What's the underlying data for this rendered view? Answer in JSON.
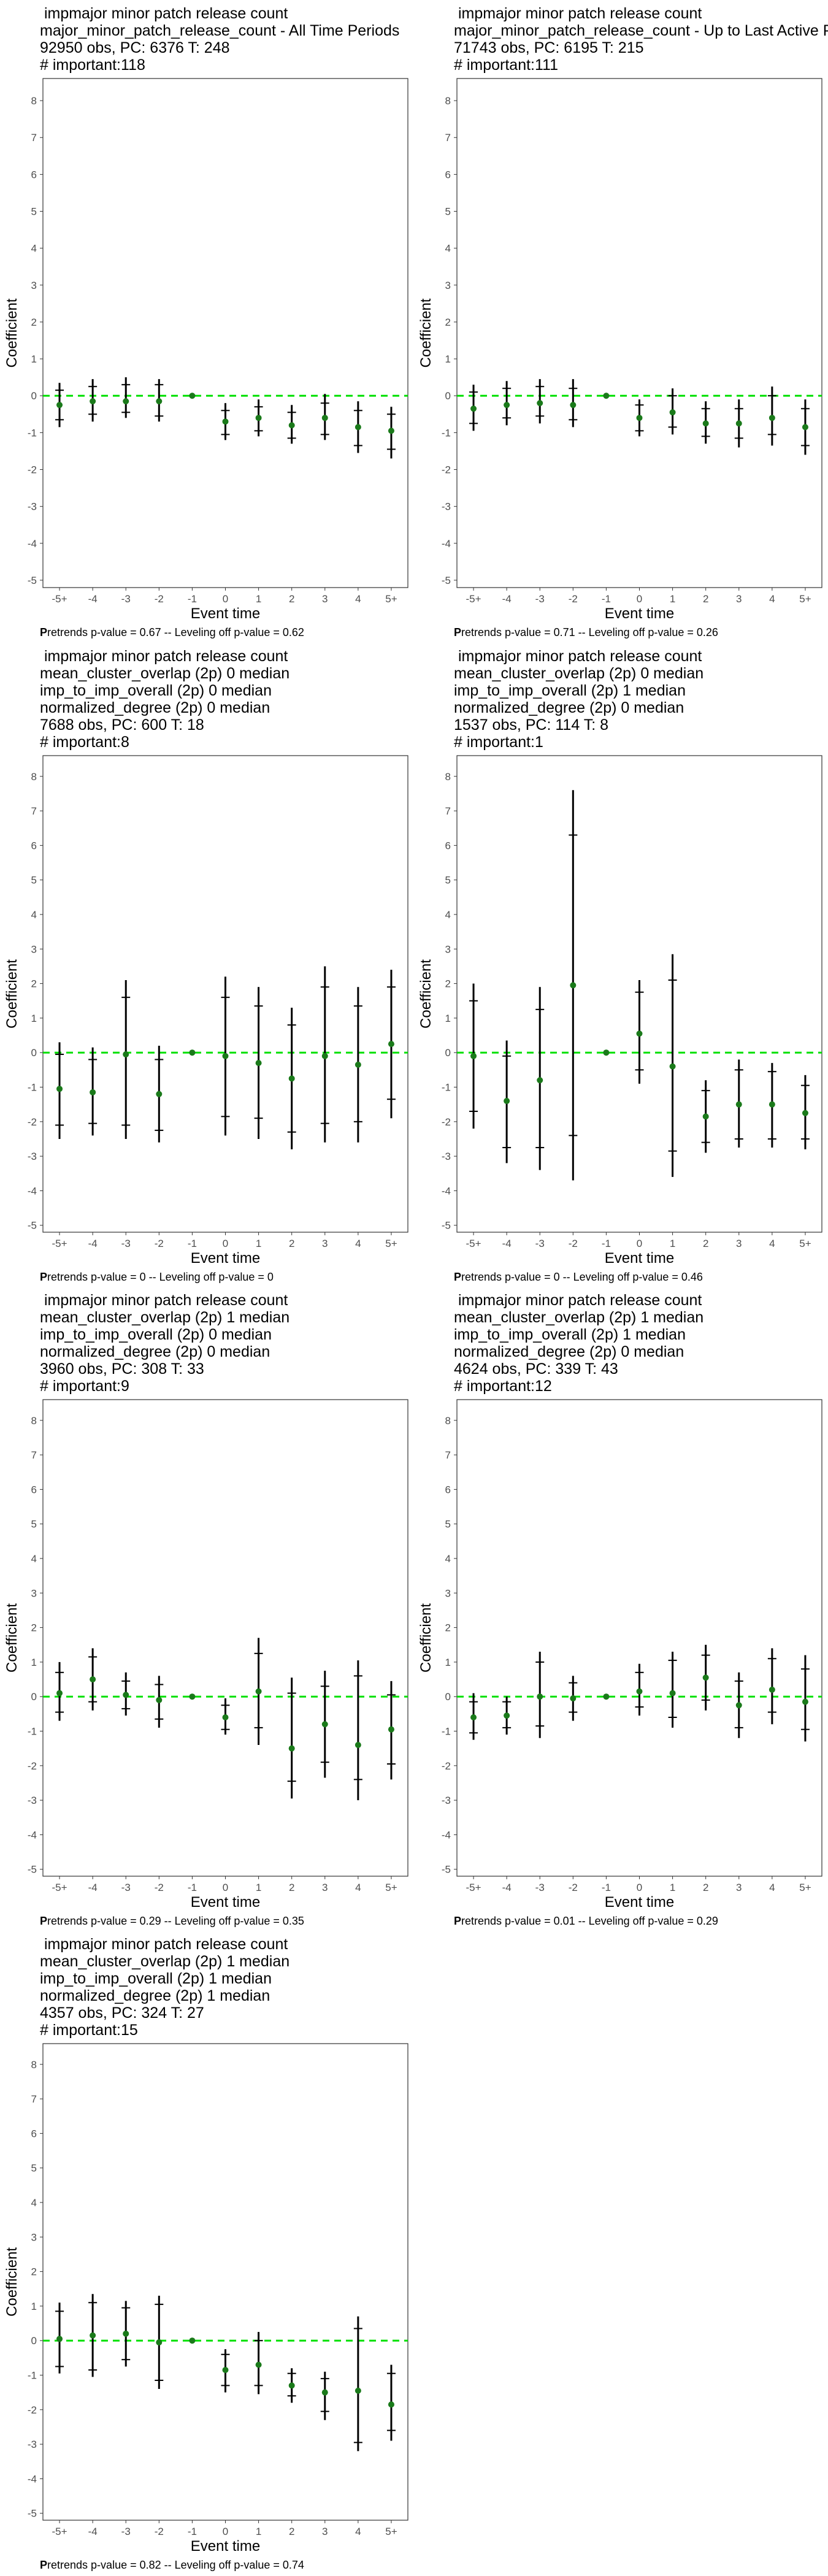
{
  "chart_data": [
    {
      "type": "scatter",
      "title_lines": [
        " impmajor minor patch release count",
        "major_minor_patch_release_count - All Time Periods",
        "92950 obs, PC: 6376 T: 248",
        "# important:118"
      ],
      "xlabel": "Event time",
      "ylabel": "Coefficient",
      "categories": [
        "-5+",
        "-4",
        "-3",
        "-2",
        "-1",
        "0",
        "1",
        "2",
        "3",
        "4",
        "5+"
      ],
      "ylim": [
        -5.2,
        8.6
      ],
      "yticks": [
        -5,
        -4,
        -3,
        -2,
        -1,
        0,
        1,
        2,
        3,
        4,
        5,
        6,
        7,
        8
      ],
      "reference_line": 0,
      "point_color": "#1a7a1a",
      "line_color": "#00e000",
      "estimates": [
        -0.25,
        -0.15,
        -0.15,
        -0.15,
        0,
        -0.7,
        -0.6,
        -0.8,
        -0.6,
        -0.85,
        -0.95
      ],
      "ci_outer": [
        [
          -0.85,
          0.35
        ],
        [
          -0.7,
          0.45
        ],
        [
          -0.6,
          0.5
        ],
        [
          -0.7,
          0.45
        ],
        [
          0,
          0
        ],
        [
          -1.2,
          -0.2
        ],
        [
          -1.1,
          -0.1
        ],
        [
          -1.3,
          -0.25
        ],
        [
          -1.2,
          0.05
        ],
        [
          -1.55,
          -0.15
        ],
        [
          -1.7,
          -0.3
        ]
      ],
      "ci_inner": [
        [
          -0.65,
          0.15
        ],
        [
          -0.5,
          0.25
        ],
        [
          -0.45,
          0.3
        ],
        [
          -0.55,
          0.3
        ],
        [
          0,
          0
        ],
        [
          -1.05,
          -0.4
        ],
        [
          -0.95,
          -0.3
        ],
        [
          -1.15,
          -0.45
        ],
        [
          -1.05,
          -0.2
        ],
        [
          -1.35,
          -0.4
        ],
        [
          -1.45,
          -0.5
        ]
      ],
      "note_bold": "P",
      "note": "retrends p-value = 0.67 -- Leveling off p-value = 0.62"
    },
    {
      "type": "scatter",
      "title_lines": [
        " impmajor minor patch release count",
        "major_minor_patch_release_count - Up to Last Active Period",
        "71743 obs, PC: 6195 T: 215",
        "# important:111"
      ],
      "xlabel": "Event time",
      "ylabel": "Coefficient",
      "categories": [
        "-5+",
        "-4",
        "-3",
        "-2",
        "-1",
        "0",
        "1",
        "2",
        "3",
        "4",
        "5+"
      ],
      "ylim": [
        -5.2,
        8.6
      ],
      "yticks": [
        -5,
        -4,
        -3,
        -2,
        -1,
        0,
        1,
        2,
        3,
        4,
        5,
        6,
        7,
        8
      ],
      "reference_line": 0,
      "point_color": "#1a7a1a",
      "line_color": "#00e000",
      "estimates": [
        -0.35,
        -0.25,
        -0.2,
        -0.25,
        0,
        -0.6,
        -0.45,
        -0.75,
        -0.75,
        -0.6,
        -0.85
      ],
      "ci_outer": [
        [
          -0.95,
          0.3
        ],
        [
          -0.8,
          0.4
        ],
        [
          -0.75,
          0.45
        ],
        [
          -0.85,
          0.45
        ],
        [
          0,
          0
        ],
        [
          -1.1,
          -0.1
        ],
        [
          -1.05,
          0.2
        ],
        [
          -1.3,
          -0.15
        ],
        [
          -1.4,
          -0.1
        ],
        [
          -1.35,
          0.25
        ],
        [
          -1.6,
          -0.1
        ]
      ],
      "ci_inner": [
        [
          -0.75,
          0.1
        ],
        [
          -0.6,
          0.2
        ],
        [
          -0.55,
          0.25
        ],
        [
          -0.65,
          0.2
        ],
        [
          0,
          0
        ],
        [
          -0.95,
          -0.25
        ],
        [
          -0.85,
          0
        ],
        [
          -1.1,
          -0.35
        ],
        [
          -1.15,
          -0.35
        ],
        [
          -1.05,
          0
        ],
        [
          -1.35,
          -0.35
        ]
      ],
      "note_bold": "P",
      "note": "retrends p-value = 0.71 -- Leveling off p-value = 0.26"
    },
    {
      "type": "scatter",
      "title_lines": [
        " impmajor minor patch release count",
        "mean_cluster_overlap (2p) 0 median",
        "imp_to_imp_overall (2p) 0 median",
        "normalized_degree (2p) 0 median",
        "7688 obs, PC: 600 T: 18",
        "# important:8"
      ],
      "xlabel": "Event time",
      "ylabel": "Coefficient",
      "categories": [
        "-5+",
        "-4",
        "-3",
        "-2",
        "-1",
        "0",
        "1",
        "2",
        "3",
        "4",
        "5+"
      ],
      "ylim": [
        -5.2,
        8.6
      ],
      "yticks": [
        -5,
        -4,
        -3,
        -2,
        -1,
        0,
        1,
        2,
        3,
        4,
        5,
        6,
        7,
        8
      ],
      "reference_line": 0,
      "point_color": "#1a7a1a",
      "line_color": "#00e000",
      "estimates": [
        -1.05,
        -1.15,
        -0.05,
        -1.2,
        0,
        -0.1,
        -0.3,
        -0.75,
        -0.1,
        -0.35,
        0.25
      ],
      "ci_outer": [
        [
          -2.5,
          0.3
        ],
        [
          -2.4,
          0.15
        ],
        [
          -2.5,
          2.1
        ],
        [
          -2.6,
          0.2
        ],
        [
          0,
          0
        ],
        [
          -2.4,
          2.2
        ],
        [
          -2.5,
          1.9
        ],
        [
          -2.8,
          1.3
        ],
        [
          -2.6,
          2.5
        ],
        [
          -2.6,
          1.9
        ],
        [
          -1.9,
          2.4
        ]
      ],
      "ci_inner": [
        [
          -2.1,
          -0.05
        ],
        [
          -2.05,
          -0.2
        ],
        [
          -2.1,
          1.6
        ],
        [
          -2.25,
          -0.2
        ],
        [
          0,
          0
        ],
        [
          -1.85,
          1.6
        ],
        [
          -1.9,
          1.35
        ],
        [
          -2.3,
          0.8
        ],
        [
          -2.05,
          1.9
        ],
        [
          -2.0,
          1.35
        ],
        [
          -1.35,
          1.9
        ]
      ],
      "note_bold": "P",
      "note": "retrends p-value = 0 -- Leveling off p-value = 0"
    },
    {
      "type": "scatter",
      "title_lines": [
        " impmajor minor patch release count",
        "mean_cluster_overlap (2p) 0 median",
        "imp_to_imp_overall (2p) 1 median",
        "normalized_degree (2p) 0 median",
        "1537 obs, PC: 114 T: 8",
        "# important:1"
      ],
      "xlabel": "Event time",
      "ylabel": "Coefficient",
      "categories": [
        "-5+",
        "-4",
        "-3",
        "-2",
        "-1",
        "0",
        "1",
        "2",
        "3",
        "4",
        "5+"
      ],
      "ylim": [
        -5.2,
        8.6
      ],
      "yticks": [
        -5,
        -4,
        -3,
        -2,
        -1,
        0,
        1,
        2,
        3,
        4,
        5,
        6,
        7,
        8
      ],
      "reference_line": 0,
      "point_color": "#1a7a1a",
      "line_color": "#00e000",
      "estimates": [
        -0.1,
        -1.4,
        -0.8,
        1.95,
        0,
        0.55,
        -0.4,
        -1.85,
        -1.5,
        -1.5,
        -1.75
      ],
      "ci_outer": [
        [
          -2.2,
          2.0
        ],
        [
          -3.2,
          0.35
        ],
        [
          -3.4,
          1.9
        ],
        [
          -3.7,
          7.6
        ],
        [
          0,
          0
        ],
        [
          -0.9,
          2.1
        ],
        [
          -3.6,
          2.85
        ],
        [
          -2.9,
          -0.8
        ],
        [
          -2.75,
          -0.2
        ],
        [
          -2.75,
          -0.3
        ],
        [
          -2.8,
          -0.65
        ]
      ],
      "ci_inner": [
        [
          -1.7,
          1.5
        ],
        [
          -2.75,
          -0.1
        ],
        [
          -2.75,
          1.25
        ],
        [
          -2.4,
          6.3
        ],
        [
          0,
          0
        ],
        [
          -0.5,
          1.75
        ],
        [
          -2.85,
          2.1
        ],
        [
          -2.6,
          -1.1
        ],
        [
          -2.5,
          -0.5
        ],
        [
          -2.5,
          -0.55
        ],
        [
          -2.5,
          -0.95
        ]
      ],
      "note_bold": "P",
      "note": "retrends p-value = 0 -- Leveling off p-value = 0.46"
    },
    {
      "type": "scatter",
      "title_lines": [
        " impmajor minor patch release count",
        "mean_cluster_overlap (2p) 1 median",
        "imp_to_imp_overall (2p) 0 median",
        "normalized_degree (2p) 0 median",
        "3960 obs, PC: 308 T: 33",
        "# important:9"
      ],
      "xlabel": "Event time",
      "ylabel": "Coefficient",
      "categories": [
        "-5+",
        "-4",
        "-3",
        "-2",
        "-1",
        "0",
        "1",
        "2",
        "3",
        "4",
        "5+"
      ],
      "ylim": [
        -5.2,
        8.6
      ],
      "yticks": [
        -5,
        -4,
        -3,
        -2,
        -1,
        0,
        1,
        2,
        3,
        4,
        5,
        6,
        7,
        8
      ],
      "reference_line": 0,
      "point_color": "#1a7a1a",
      "line_color": "#00e000",
      "estimates": [
        0.1,
        0.5,
        0.05,
        -0.1,
        0,
        -0.6,
        0.15,
        -1.5,
        -0.8,
        -1.4,
        -0.95
      ],
      "ci_outer": [
        [
          -0.7,
          1.0
        ],
        [
          -0.4,
          1.4
        ],
        [
          -0.55,
          0.7
        ],
        [
          -0.9,
          0.6
        ],
        [
          0,
          0
        ],
        [
          -1.1,
          -0.05
        ],
        [
          -1.4,
          1.7
        ],
        [
          -2.95,
          0.55
        ],
        [
          -2.35,
          0.75
        ],
        [
          -3.0,
          1.05
        ],
        [
          -2.4,
          0.45
        ]
      ],
      "ci_inner": [
        [
          -0.45,
          0.7
        ],
        [
          -0.15,
          1.15
        ],
        [
          -0.35,
          0.45
        ],
        [
          -0.65,
          0.35
        ],
        [
          0,
          0
        ],
        [
          -0.95,
          -0.25
        ],
        [
          -0.9,
          1.25
        ],
        [
          -2.45,
          0.1
        ],
        [
          -1.9,
          0.3
        ],
        [
          -2.4,
          0.6
        ],
        [
          -1.95,
          0.05
        ]
      ],
      "note_bold": "P",
      "note": "retrends p-value = 0.29 -- Leveling off p-value = 0.35"
    },
    {
      "type": "scatter",
      "title_lines": [
        " impmajor minor patch release count",
        "mean_cluster_overlap (2p) 1 median",
        "imp_to_imp_overall (2p) 1 median",
        "normalized_degree (2p) 0 median",
        "4624 obs, PC: 339 T: 43",
        "# important:12"
      ],
      "xlabel": "Event time",
      "ylabel": "Coefficient",
      "categories": [
        "-5+",
        "-4",
        "-3",
        "-2",
        "-1",
        "0",
        "1",
        "2",
        "3",
        "4",
        "5+"
      ],
      "ylim": [
        -5.2,
        8.6
      ],
      "yticks": [
        -5,
        -4,
        -3,
        -2,
        -1,
        0,
        1,
        2,
        3,
        4,
        5,
        6,
        7,
        8
      ],
      "reference_line": 0,
      "point_color": "#1a7a1a",
      "line_color": "#00e000",
      "estimates": [
        -0.6,
        -0.55,
        0.0,
        -0.05,
        0,
        0.15,
        0.1,
        0.55,
        -0.25,
        0.2,
        -0.15
      ],
      "ci_outer": [
        [
          -1.25,
          0.1
        ],
        [
          -1.1,
          0.0
        ],
        [
          -1.2,
          1.3
        ],
        [
          -0.7,
          0.6
        ],
        [
          0,
          0
        ],
        [
          -0.55,
          0.95
        ],
        [
          -0.9,
          1.3
        ],
        [
          -0.4,
          1.5
        ],
        [
          -1.2,
          0.7
        ],
        [
          -0.8,
          1.4
        ],
        [
          -1.3,
          1.2
        ]
      ],
      "ci_inner": [
        [
          -1.05,
          -0.15
        ],
        [
          -0.9,
          -0.15
        ],
        [
          -0.85,
          1.0
        ],
        [
          -0.45,
          0.4
        ],
        [
          0,
          0
        ],
        [
          -0.3,
          0.7
        ],
        [
          -0.6,
          1.05
        ],
        [
          -0.1,
          1.2
        ],
        [
          -0.9,
          0.45
        ],
        [
          -0.45,
          1.1
        ],
        [
          -0.95,
          0.8
        ]
      ],
      "note_bold": "P",
      "note": "retrends p-value = 0.01 -- Leveling off p-value = 0.29"
    },
    {
      "type": "scatter",
      "title_lines": [
        " impmajor minor patch release count",
        "mean_cluster_overlap (2p) 1 median",
        "imp_to_imp_overall (2p) 1 median",
        "normalized_degree (2p) 1 median",
        "4357 obs, PC: 324 T: 27",
        "# important:15"
      ],
      "xlabel": "Event time",
      "ylabel": "Coefficient",
      "categories": [
        "-5+",
        "-4",
        "-3",
        "-2",
        "-1",
        "0",
        "1",
        "2",
        "3",
        "4",
        "5+"
      ],
      "ylim": [
        -5.2,
        8.6
      ],
      "yticks": [
        -5,
        -4,
        -3,
        -2,
        -1,
        0,
        1,
        2,
        3,
        4,
        5,
        6,
        7,
        8
      ],
      "reference_line": 0,
      "point_color": "#1a7a1a",
      "line_color": "#00e000",
      "estimates": [
        0.05,
        0.15,
        0.2,
        -0.05,
        0,
        -0.85,
        -0.7,
        -1.3,
        -1.5,
        -1.45,
        -1.85
      ],
      "ci_outer": [
        [
          -0.95,
          1.1
        ],
        [
          -1.05,
          1.35
        ],
        [
          -0.75,
          1.15
        ],
        [
          -1.4,
          1.3
        ],
        [
          0,
          0
        ],
        [
          -1.5,
          -0.25
        ],
        [
          -1.55,
          0.25
        ],
        [
          -1.8,
          -0.8
        ],
        [
          -2.3,
          -0.9
        ],
        [
          -3.2,
          0.7
        ],
        [
          -2.9,
          -0.7
        ]
      ],
      "ci_inner": [
        [
          -0.75,
          0.85
        ],
        [
          -0.85,
          1.1
        ],
        [
          -0.55,
          0.95
        ],
        [
          -1.15,
          1.05
        ],
        [
          0,
          0
        ],
        [
          -1.3,
          -0.4
        ],
        [
          -1.3,
          0
        ],
        [
          -1.6,
          -0.95
        ],
        [
          -2.05,
          -1.1
        ],
        [
          -2.95,
          0.35
        ],
        [
          -2.6,
          -0.95
        ]
      ],
      "note_bold": "P",
      "note": "retrends p-value = 0.82 -- Leveling off p-value = 0.74"
    }
  ]
}
